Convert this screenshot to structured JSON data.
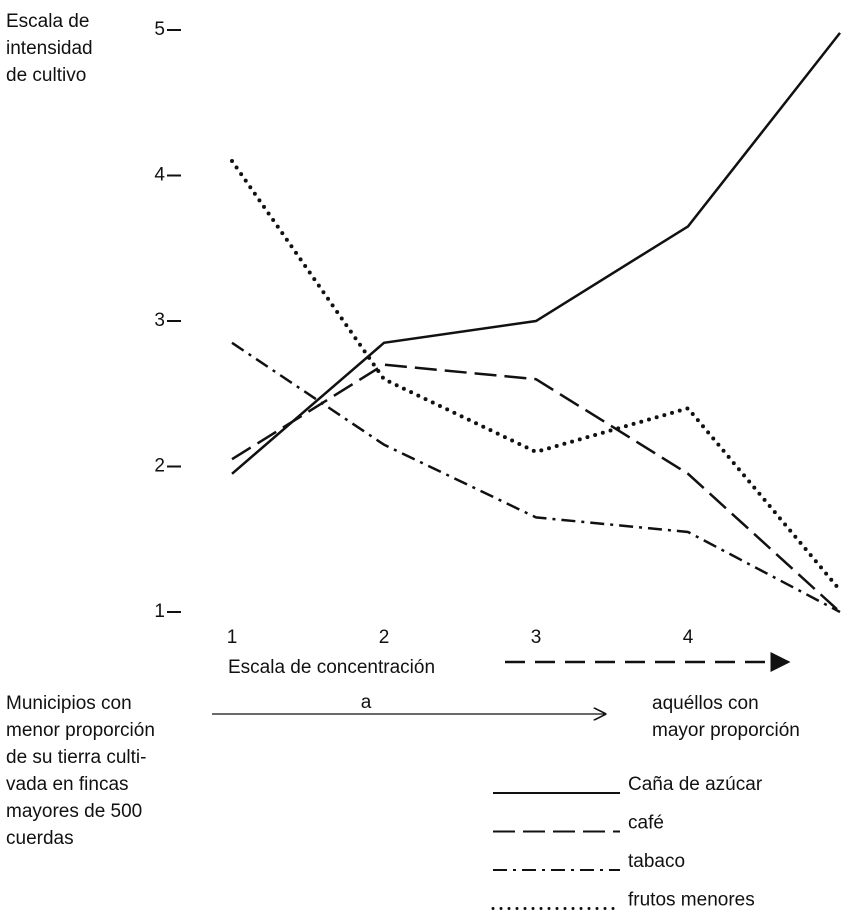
{
  "chart_data": {
    "type": "line",
    "y_label": [
      "Escala de",
      "intensidad",
      "de cultivo"
    ],
    "x_label": "Escala de concentración",
    "categories": [
      "1",
      "2",
      "3",
      "4",
      null
    ],
    "ylim": [
      1,
      5
    ],
    "yticks": [
      1,
      2,
      3,
      4,
      5
    ],
    "note_left": [
      "Municipios con",
      "menor proporción",
      "de su tierra culti-",
      "vada en fincas",
      "mayores de 500",
      "cuerdas"
    ],
    "note_middle": "a",
    "note_right": [
      "aquéllos con",
      "mayor proporción"
    ],
    "series": [
      {
        "name": "Caña de azúcar",
        "color": "#111111",
        "dash": "solid",
        "values": [
          1.95,
          2.85,
          3.0,
          3.65,
          4.98
        ]
      },
      {
        "name": "café",
        "color": "#111111",
        "dash": "dashed",
        "values": [
          2.05,
          2.7,
          2.6,
          1.95,
          1.0
        ]
      },
      {
        "name": "tabaco",
        "color": "#111111",
        "dash": "dashdot",
        "values": [
          2.85,
          2.15,
          1.65,
          1.55,
          1.0
        ]
      },
      {
        "name": "frutos menores",
        "color": "#111111",
        "dash": "dotted",
        "values": [
          4.1,
          2.6,
          2.1,
          2.4,
          1.15
        ]
      }
    ]
  }
}
